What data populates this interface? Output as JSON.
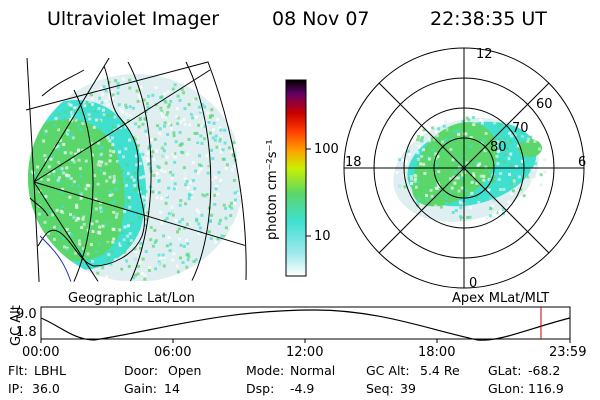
{
  "header": {
    "instrument": "Ultraviolet Imager",
    "date": "08 Nov 07",
    "time": "22:38:35 UT"
  },
  "geo_panel": {
    "label": "Geographic Lat/Lon"
  },
  "polar_panel": {
    "label": "Apex MLat/MLT",
    "mlt_labels": {
      "top": "12",
      "right": "6",
      "bottom": "0",
      "left": "18"
    },
    "lat_labels": [
      "60",
      "70",
      "80"
    ]
  },
  "colorbar": {
    "unit_label": "photon cm⁻²s⁻¹",
    "ticks": [
      "100",
      "10"
    ],
    "scale": "log",
    "colors": [
      "#ffffff",
      "#40e0d0",
      "#5ad66a",
      "#c8f000",
      "#ffa000",
      "#ff3c00",
      "#c80000",
      "#640064",
      "#000000"
    ]
  },
  "altitude": {
    "axis_label": "GC Alt",
    "y_ticks": [
      "9.0",
      "1.8"
    ],
    "x_ticks": [
      "00:00",
      "06:00",
      "12:00",
      "18:00",
      "23:59"
    ],
    "marker_color": "#cc0000"
  },
  "footer": {
    "row1": [
      {
        "label": "Flt:",
        "value": "LBHL"
      },
      {
        "label": "Door:",
        "value": "Open"
      },
      {
        "label": "Mode:",
        "value": "Normal"
      },
      {
        "label": "GC Alt:",
        "value": "5.4 Re"
      },
      {
        "label": "GLat:",
        "value": "-68.2"
      }
    ],
    "row2": [
      {
        "label": "IP:",
        "value": "36.0"
      },
      {
        "label": "Gain:",
        "value": "14"
      },
      {
        "label": "Dsp:",
        "value": "-4.9"
      },
      {
        "label": "Seq:",
        "value": "39"
      },
      {
        "label": "GLon:",
        "value": "116.9"
      }
    ]
  },
  "colors": {
    "aurora_green": "#5ad66a",
    "aurora_cyan": "#40e0d0",
    "haze": "#dfeef0",
    "coast_blue": "#2030c0"
  }
}
